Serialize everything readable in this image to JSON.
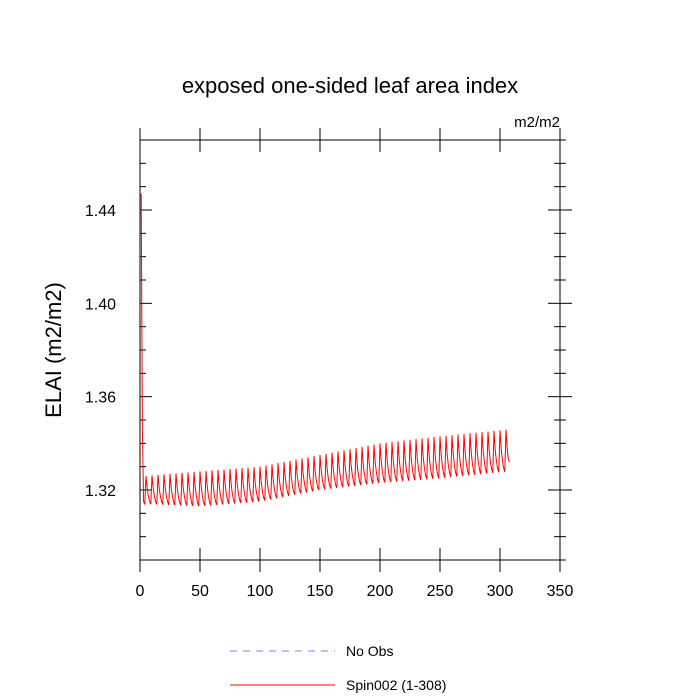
{
  "chart_data": {
    "type": "line",
    "title": "exposed one-sided leaf area index",
    "units": "m2/m2",
    "xlabel": "",
    "ylabel": "ELAI  (m2/m2)",
    "xlim": [
      0,
      350
    ],
    "ylim": [
      1.29,
      1.47
    ],
    "x_ticks": [
      0,
      50,
      100,
      150,
      200,
      250,
      300,
      350
    ],
    "x_tick_labels": [
      "0",
      "50",
      "100",
      "150",
      "200",
      "250",
      "300",
      "350"
    ],
    "y_ticks": [
      1.32,
      1.36,
      1.4,
      1.44
    ],
    "y_tick_labels": [
      "1.32",
      "1.36",
      "1.40",
      "1.44"
    ],
    "legend_position": "bottom",
    "series": [
      {
        "name": "No Obs",
        "color": "#8080ff",
        "dash": "dashed",
        "x": [],
        "y": []
      },
      {
        "name": "Spin002 (1-308)",
        "color": "#ff0000",
        "dash": "solid",
        "cycle_length": 5,
        "x_start": 1,
        "x_end": 308,
        "initial": [
          {
            "x": 1,
            "y": 1.447
          },
          {
            "x": 2,
            "y": 1.345
          },
          {
            "x": 3,
            "y": 1.315
          }
        ],
        "envelope": [
          {
            "x": 5,
            "trough": 1.314,
            "peak": 1.326
          },
          {
            "x": 50,
            "trough": 1.313,
            "peak": 1.328
          },
          {
            "x": 100,
            "trough": 1.315,
            "peak": 1.33
          },
          {
            "x": 150,
            "trough": 1.32,
            "peak": 1.335
          },
          {
            "x": 200,
            "trough": 1.323,
            "peak": 1.34
          },
          {
            "x": 250,
            "trough": 1.325,
            "peak": 1.343
          },
          {
            "x": 308,
            "trough": 1.328,
            "peak": 1.346
          }
        ],
        "final": {
          "x": 308,
          "y": 1.332
        }
      }
    ]
  },
  "legend": {
    "items": [
      {
        "label": "No Obs",
        "color": "#8080ff",
        "dash": "dashed"
      },
      {
        "label": "Spin002 (1-308)",
        "color": "#ff0000",
        "dash": "solid"
      }
    ]
  }
}
